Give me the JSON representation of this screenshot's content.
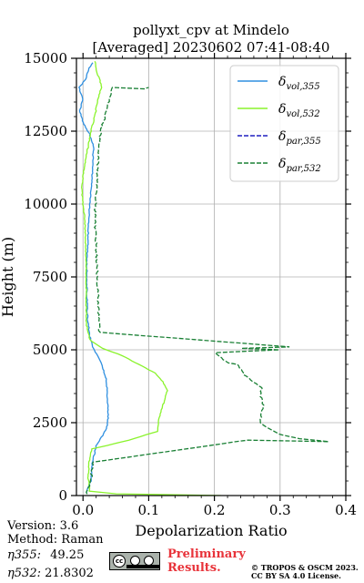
{
  "chart_data": {
    "type": "line",
    "title": "pollyxt_cpv at Mindelo",
    "subtitle": "[Averaged] 20230602 07:41-08:40",
    "xlabel": "Depolarization Ratio",
    "ylabel": "Height (m)",
    "xlim": [
      -0.01,
      0.4
    ],
    "ylim": [
      0,
      15000
    ],
    "xticks": [
      "0.0",
      "0.1",
      "0.2",
      "0.3",
      "0.4"
    ],
    "yticks": [
      "0",
      "2500",
      "5000",
      "7500",
      "10000",
      "12500",
      "15000"
    ],
    "grid": true,
    "legend_position": "top-right",
    "series": [
      {
        "name": "δvol,355",
        "legend_main": "δ",
        "legend_sub": "vol,355",
        "color": "#2f8fe0",
        "dash": "solid",
        "points": [
          [
            0.005,
            100
          ],
          [
            0.012,
            500
          ],
          [
            0.014,
            1100
          ],
          [
            0.016,
            1300
          ],
          [
            0.02,
            1700
          ],
          [
            0.028,
            2000
          ],
          [
            0.036,
            2300
          ],
          [
            0.038,
            2600
          ],
          [
            0.038,
            3000
          ],
          [
            0.037,
            3500
          ],
          [
            0.035,
            4000
          ],
          [
            0.03,
            4400
          ],
          [
            0.022,
            4800
          ],
          [
            0.015,
            5100
          ],
          [
            0.011,
            5400
          ],
          [
            0.009,
            5700
          ],
          [
            0.007,
            6000
          ],
          [
            0.006,
            7000
          ],
          [
            0.006,
            8000
          ],
          [
            0.007,
            8500
          ],
          [
            0.008,
            9000
          ],
          [
            0.009,
            9500
          ],
          [
            0.01,
            10000
          ],
          [
            0.012,
            10500
          ],
          [
            0.014,
            11000
          ],
          [
            0.015,
            11500
          ],
          [
            0.016,
            12000
          ],
          [
            0.01,
            12400
          ],
          [
            0.0,
            12800
          ],
          [
            -0.005,
            13200
          ],
          [
            0.0,
            13600
          ],
          [
            -0.006,
            14000
          ],
          [
            0.005,
            14300
          ],
          [
            0.008,
            14600
          ],
          [
            0.015,
            14850
          ]
        ]
      },
      {
        "name": "δvol,532",
        "legend_main": "δ",
        "legend_sub": "vol,532",
        "color": "#8af32c",
        "dash": "solid",
        "points": [
          [
            0.21,
            0
          ],
          [
            0.05,
            60
          ],
          [
            0.01,
            150
          ],
          [
            0.008,
            600
          ],
          [
            0.009,
            1100
          ],
          [
            0.011,
            1400
          ],
          [
            0.014,
            1600
          ],
          [
            0.07,
            1900
          ],
          [
            0.113,
            2200
          ],
          [
            0.115,
            2500
          ],
          [
            0.117,
            2800
          ],
          [
            0.12,
            3000
          ],
          [
            0.125,
            3300
          ],
          [
            0.128,
            3600
          ],
          [
            0.122,
            3900
          ],
          [
            0.11,
            4200
          ],
          [
            0.085,
            4500
          ],
          [
            0.06,
            4800
          ],
          [
            0.03,
            5050
          ],
          [
            0.012,
            5300
          ],
          [
            0.007,
            5600
          ],
          [
            0.005,
            6000
          ],
          [
            0.005,
            7000
          ],
          [
            0.005,
            7500
          ],
          [
            0.004,
            8500
          ],
          [
            0.003,
            9500
          ],
          [
            0.0,
            10000
          ],
          [
            -0.002,
            10500
          ],
          [
            0.0,
            11000
          ],
          [
            0.004,
            11500
          ],
          [
            0.008,
            12000
          ],
          [
            0.012,
            12500
          ],
          [
            0.018,
            13000
          ],
          [
            0.022,
            13500
          ],
          [
            0.028,
            14000
          ],
          [
            0.025,
            14300
          ],
          [
            0.02,
            14600
          ],
          [
            0.018,
            14900
          ]
        ]
      },
      {
        "name": "δpar,355",
        "legend_main": "δ",
        "legend_sub": "par,355",
        "color": "#1f1fbf",
        "dash": "dashed",
        "points": []
      },
      {
        "name": "δpar,532",
        "legend_main": "δ",
        "legend_sub": "par,532",
        "color": "#1a8035",
        "dash": "dashed",
        "points": [
          [
            0.005,
            50
          ],
          [
            0.012,
            500
          ],
          [
            0.014,
            1000
          ],
          [
            0.016,
            1150
          ],
          [
            0.25,
            1900
          ],
          [
            0.375,
            1850
          ],
          [
            0.33,
            1950
          ],
          [
            0.3,
            2100
          ],
          [
            0.28,
            2350
          ],
          [
            0.27,
            2500
          ],
          [
            0.272,
            2800
          ],
          [
            0.275,
            3100
          ],
          [
            0.27,
            3400
          ],
          [
            0.272,
            3700
          ],
          [
            0.26,
            3900
          ],
          [
            0.245,
            4150
          ],
          [
            0.235,
            4500
          ],
          [
            0.22,
            4550
          ],
          [
            0.2,
            4900
          ],
          [
            0.3,
            5000
          ],
          [
            0.24,
            5050
          ],
          [
            0.315,
            5100
          ],
          [
            0.025,
            5600
          ],
          [
            0.02,
            8600
          ],
          [
            0.018,
            9500
          ],
          [
            0.025,
            12300
          ],
          [
            0.045,
            14000
          ],
          [
            0.095,
            13950
          ],
          [
            0.1,
            14000
          ]
        ]
      }
    ]
  },
  "footer": {
    "version": "Version: 3.6",
    "method": "Method: Raman",
    "eta355_label": "η355:",
    "eta355_value": "49.25",
    "eta532_label": "η532:",
    "eta532_value": "21.8302",
    "cc_icon": "creative-commons-by-sa-icon",
    "cc_label": "cc",
    "preliminary_line1": "Preliminary",
    "preliminary_line2": "Results.",
    "copyright_line1": "© TROPOS & OSCM 2023.",
    "copyright_line2": "CC BY SA 4.0 License.",
    "preliminary_color": "#e8333a"
  }
}
